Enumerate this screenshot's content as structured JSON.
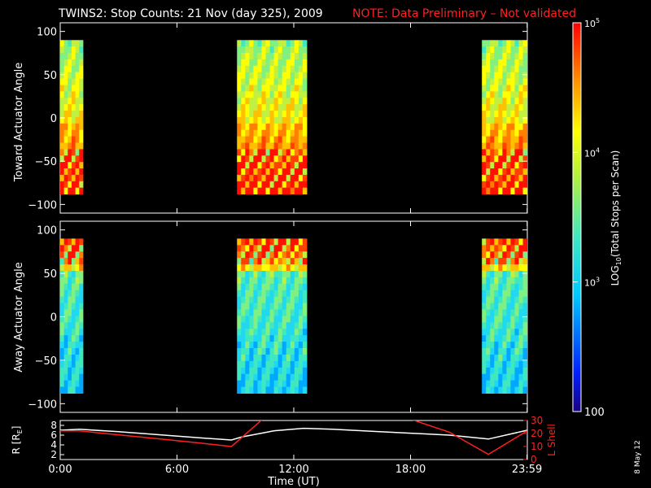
{
  "chart_data": [
    {
      "type": "heatmap",
      "panel": "top",
      "title": "TWINS2: Stop Counts: 21 Nov (day 325), 2009",
      "note": "NOTE: Data Preliminary – Not validated",
      "ylabel": "Toward Actuator Angle",
      "ylim": [
        -110,
        110
      ],
      "yticks": [
        100,
        50,
        0,
        -50,
        -100
      ],
      "data_blocks": [
        {
          "start": "00:00",
          "end": "01:10",
          "angle_range": [
            -88,
            90
          ]
        },
        {
          "start": "09:05",
          "end": "12:40",
          "angle_range": [
            -88,
            90
          ]
        },
        {
          "start": "21:40",
          "end": "23:59",
          "angle_range": [
            -88,
            90
          ]
        }
      ]
    },
    {
      "type": "heatmap",
      "panel": "middle",
      "ylabel": "Away Actuator Angle",
      "ylim": [
        -110,
        110
      ],
      "yticks": [
        100,
        50,
        0,
        -50,
        -100
      ],
      "data_blocks": [
        {
          "start": "00:00",
          "end": "01:10",
          "angle_range": [
            -88,
            90
          ]
        },
        {
          "start": "09:05",
          "end": "12:40",
          "angle_range": [
            -88,
            90
          ]
        },
        {
          "start": "21:40",
          "end": "23:59",
          "angle_range": [
            -88,
            90
          ]
        }
      ]
    },
    {
      "type": "line",
      "panel": "bottom",
      "xlabel": "Time (UT)",
      "xticks": [
        "0:00",
        "6:00",
        "12:00",
        "18:00",
        "23:59"
      ],
      "left_axis": {
        "label": "R [R",
        "label_sub": "E",
        "label_close": "]",
        "range": [
          1,
          9
        ],
        "ticks": [
          8,
          6,
          4,
          2
        ]
      },
      "right_axis": {
        "label": "L Shell",
        "range": [
          0,
          30
        ],
        "ticks": [
          30,
          20,
          10,
          0
        ]
      },
      "series": [
        {
          "color": "#ffffff",
          "axis": "left",
          "x": [
            0,
            1,
            3,
            5,
            7,
            8.8,
            9.3,
            11,
            12.5,
            14,
            16,
            18,
            20,
            22,
            23.99
          ],
          "y": [
            7.0,
            7.2,
            6.7,
            6.1,
            5.5,
            5.0,
            5.6,
            6.9,
            7.4,
            7.2,
            6.8,
            6.4,
            6.0,
            5.2,
            7.0
          ]
        },
        {
          "color": "#ff2020",
          "axis": "right",
          "segments": [
            {
              "x": [
                0,
                1,
                3,
                5,
                7,
                8.8,
                10.4
              ],
              "y": [
                22,
                22,
                19,
                16,
                13,
                10,
                31
              ]
            },
            {
              "x": [
                18.0,
                20,
                22,
                23.99
              ],
              "y": [
                31,
                21,
                4,
                22
              ]
            }
          ]
        }
      ]
    },
    {
      "type": "colorbar",
      "label": "LOG",
      "label_sub": "10",
      "label_rest": "(Total Stops per Scan)",
      "scale": "log",
      "range": [
        100,
        100000
      ],
      "tick_labels": [
        {
          "base": "10",
          "exp": "5",
          "value": 100000
        },
        {
          "base": "10",
          "exp": "4",
          "value": 10000
        },
        {
          "base": "10",
          "exp": "3",
          "value": 1000
        },
        {
          "text": "100",
          "value": 100
        }
      ]
    }
  ],
  "footer_date": "8 May 12"
}
